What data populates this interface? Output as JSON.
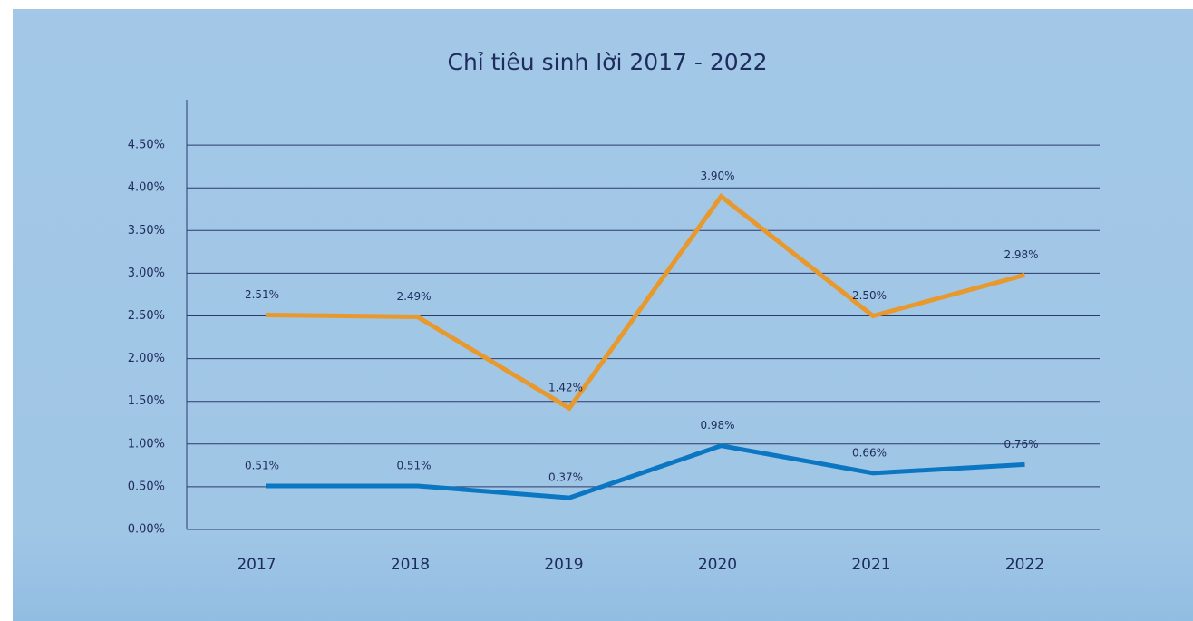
{
  "chart_data": {
    "type": "line",
    "title": "Chỉ tiêu sinh lời 2017 - 2022",
    "categories": [
      "2017",
      "2018",
      "2019",
      "2020",
      "2021",
      "2022"
    ],
    "series": [
      {
        "color": "#e8992e",
        "values": [
          2.51,
          2.49,
          1.42,
          3.9,
          2.5,
          2.98
        ],
        "value_labels": [
          "2.51%",
          "2.49%",
          "1.42%",
          "3.90%",
          "2.50%",
          "2.98%"
        ]
      },
      {
        "color": "#0b77c2",
        "values": [
          0.51,
          0.51,
          0.37,
          0.98,
          0.66,
          0.76
        ],
        "value_labels": [
          "0.51%",
          "0.51%",
          "0.37%",
          "0.98%",
          "0.66%",
          "0.76%"
        ]
      }
    ],
    "ylim": [
      0,
      5
    ],
    "yticks": [
      {
        "value": 0,
        "label": "0.00%"
      },
      {
        "value": 0.5,
        "label": "0.50%"
      },
      {
        "value": 1,
        "label": "1.00%"
      },
      {
        "value": 1.5,
        "label": "1.50%"
      },
      {
        "value": 2,
        "label": "2.00%"
      },
      {
        "value": 2.5,
        "label": "2.50%"
      },
      {
        "value": 3,
        "label": "3.00%"
      },
      {
        "value": 3.5,
        "label": "3.50%"
      },
      {
        "value": 4,
        "label": "4.00%"
      },
      {
        "value": 4.5,
        "label": "4.50%"
      }
    ],
    "grid": true
  }
}
